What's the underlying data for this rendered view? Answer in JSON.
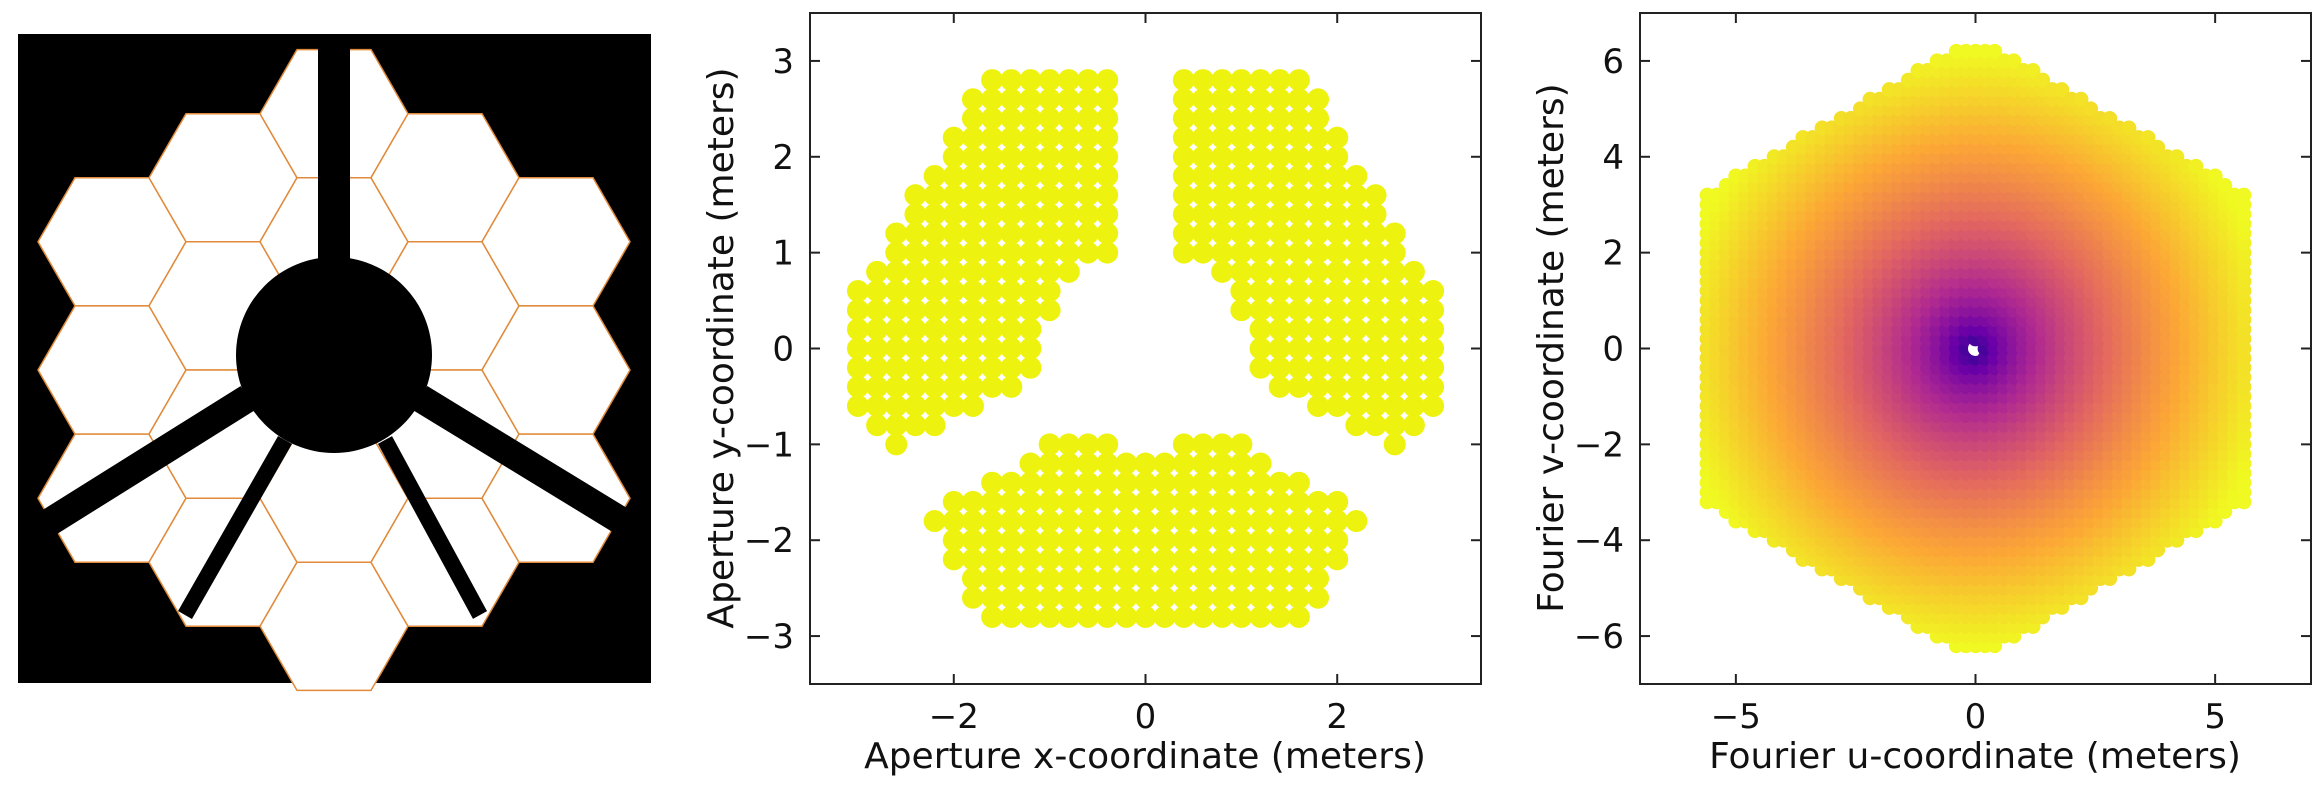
{
  "chart_data": [
    {
      "type": "image",
      "title": "",
      "description_name": "jwst-pupil-mask",
      "colors": {
        "background": "#000000",
        "segment": "#ffffff",
        "segment_edge": "#e08a3a"
      }
    },
    {
      "type": "scatter",
      "title": "",
      "xlabel": "Aperture x-coordinate (meters)",
      "ylabel": "Aperture y-coordinate (meters)",
      "xlim": [
        -3.5,
        3.5
      ],
      "ylim": [
        -3.5,
        3.5
      ],
      "xticks": [
        -2,
        0,
        2
      ],
      "xtick_labels": [
        "−2",
        "0",
        "2"
      ],
      "yticks": [
        -3,
        -2,
        -1,
        0,
        1,
        2,
        3
      ],
      "ytick_labels": [
        "−3",
        "−2",
        "−1",
        "0",
        "1",
        "2",
        "3"
      ],
      "grid_spacing": 0.2,
      "marker_color": "#eef20f",
      "masks": {
        "spider_angles_deg": [
          90,
          210,
          330
        ],
        "spider_half_width": 0.35,
        "secondary_radius": 0.55
      }
    },
    {
      "type": "scatter",
      "title": "",
      "xlabel": "Fourier u-coordinate (meters)",
      "ylabel": "Fourier v-coordinate (meters)",
      "xlim": [
        -7,
        7
      ],
      "ylim": [
        -7,
        7
      ],
      "xticks": [
        -5,
        0,
        5
      ],
      "xtick_labels": [
        "−5",
        "0",
        "5"
      ],
      "yticks": [
        -6,
        -4,
        -2,
        0,
        2,
        4,
        6
      ],
      "ytick_labels": [
        "−6",
        "−4",
        "−2",
        "0",
        "2",
        "4",
        "6"
      ],
      "grid_spacing": 0.2,
      "colormap": [
        "#0d0887",
        "#6a00a8",
        "#b12a90",
        "#e16462",
        "#fca636",
        "#f0f921"
      ],
      "color_encodes": "baseline length"
    }
  ]
}
